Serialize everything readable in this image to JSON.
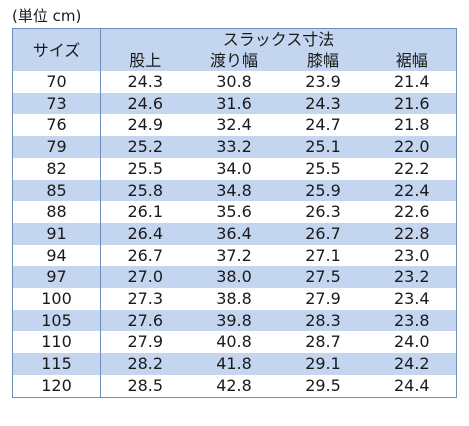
{
  "unit_label": "(単位 cm)",
  "table": {
    "size_header": "サイズ",
    "group_header": "スラックス寸法",
    "columns": [
      "股上",
      "渡り幅",
      "膝幅",
      "裾幅"
    ],
    "rows": [
      {
        "size": "70",
        "values": [
          "24.3",
          "30.8",
          "23.9",
          "21.4"
        ]
      },
      {
        "size": "73",
        "values": [
          "24.6",
          "31.6",
          "24.3",
          "21.6"
        ]
      },
      {
        "size": "76",
        "values": [
          "24.9",
          "32.4",
          "24.7",
          "21.8"
        ]
      },
      {
        "size": "79",
        "values": [
          "25.2",
          "33.2",
          "25.1",
          "22.0"
        ]
      },
      {
        "size": "82",
        "values": [
          "25.5",
          "34.0",
          "25.5",
          "22.2"
        ]
      },
      {
        "size": "85",
        "values": [
          "25.8",
          "34.8",
          "25.9",
          "22.4"
        ]
      },
      {
        "size": "88",
        "values": [
          "26.1",
          "35.6",
          "26.3",
          "22.6"
        ]
      },
      {
        "size": "91",
        "values": [
          "26.4",
          "36.4",
          "26.7",
          "22.8"
        ]
      },
      {
        "size": "94",
        "values": [
          "26.7",
          "37.2",
          "27.1",
          "23.0"
        ]
      },
      {
        "size": "97",
        "values": [
          "27.0",
          "38.0",
          "27.5",
          "23.2"
        ]
      },
      {
        "size": "100",
        "values": [
          "27.3",
          "38.8",
          "27.9",
          "23.4"
        ]
      },
      {
        "size": "105",
        "values": [
          "27.6",
          "39.8",
          "28.3",
          "23.8"
        ]
      },
      {
        "size": "110",
        "values": [
          "27.9",
          "40.8",
          "28.7",
          "24.0"
        ]
      },
      {
        "size": "115",
        "values": [
          "28.2",
          "41.8",
          "29.1",
          "24.2"
        ]
      },
      {
        "size": "120",
        "values": [
          "28.5",
          "42.8",
          "29.5",
          "24.4"
        ]
      }
    ]
  },
  "colors": {
    "band": "#c3d5ef",
    "border": "#6e8fb8"
  }
}
